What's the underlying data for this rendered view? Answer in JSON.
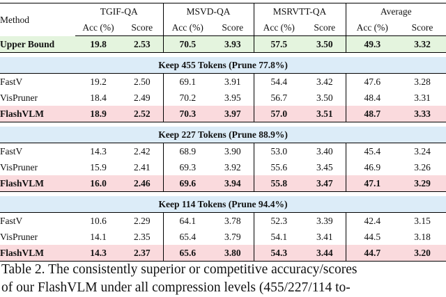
{
  "headers": {
    "method": "Method",
    "groups": [
      "TGIF-QA",
      "MSVD-QA",
      "MSRVTT-QA",
      "Average"
    ],
    "acc": "Acc (%)",
    "score": "Score"
  },
  "upper_bound": {
    "label": "Upper Bound",
    "values": [
      "19.8",
      "2.53",
      "70.5",
      "3.93",
      "57.5",
      "3.50",
      "49.3",
      "3.32"
    ]
  },
  "sections": [
    {
      "title": "Keep 455 Tokens (Prune 77.8%)",
      "rows": [
        {
          "method": "FastV",
          "values": [
            "19.2",
            "2.50",
            "69.1",
            "3.91",
            "54.4",
            "3.42",
            "47.6",
            "3.28"
          ]
        },
        {
          "method": "VisPruner",
          "values": [
            "18.4",
            "2.49",
            "70.2",
            "3.95",
            "56.7",
            "3.50",
            "48.4",
            "3.31"
          ]
        },
        {
          "method": "FlashVLM",
          "values": [
            "18.9",
            "2.52",
            "70.3",
            "3.97",
            "57.0",
            "3.51",
            "48.7",
            "3.33"
          ]
        }
      ]
    },
    {
      "title": "Keep 227 Tokens (Prune 88.9%)",
      "rows": [
        {
          "method": "FastV",
          "values": [
            "14.3",
            "2.42",
            "68.9",
            "3.90",
            "53.0",
            "3.40",
            "45.4",
            "3.24"
          ]
        },
        {
          "method": "VisPruner",
          "values": [
            "15.9",
            "2.41",
            "69.3",
            "3.92",
            "55.6",
            "3.45",
            "46.9",
            "3.26"
          ]
        },
        {
          "method": "FlashVLM",
          "values": [
            "16.0",
            "2.46",
            "69.6",
            "3.94",
            "55.8",
            "3.47",
            "47.1",
            "3.29"
          ]
        }
      ]
    },
    {
      "title": "Keep 114 Tokens (Prune 94.4%)",
      "rows": [
        {
          "method": "FastV",
          "values": [
            "10.6",
            "2.29",
            "64.1",
            "3.78",
            "52.3",
            "3.39",
            "42.4",
            "3.15"
          ]
        },
        {
          "method": "VisPruner",
          "values": [
            "14.1",
            "2.35",
            "65.4",
            "3.79",
            "54.1",
            "3.41",
            "44.5",
            "3.18"
          ]
        },
        {
          "method": "FlashVLM",
          "values": [
            "14.3",
            "2.37",
            "65.6",
            "3.80",
            "54.3",
            "3.44",
            "44.7",
            "3.20"
          ]
        }
      ]
    }
  ],
  "caption": {
    "line1": "Table 2. The consistently superior or competitive accuracy/scores",
    "line2": "of our FlashVLM under all compression levels (455/227/114 to-"
  }
}
